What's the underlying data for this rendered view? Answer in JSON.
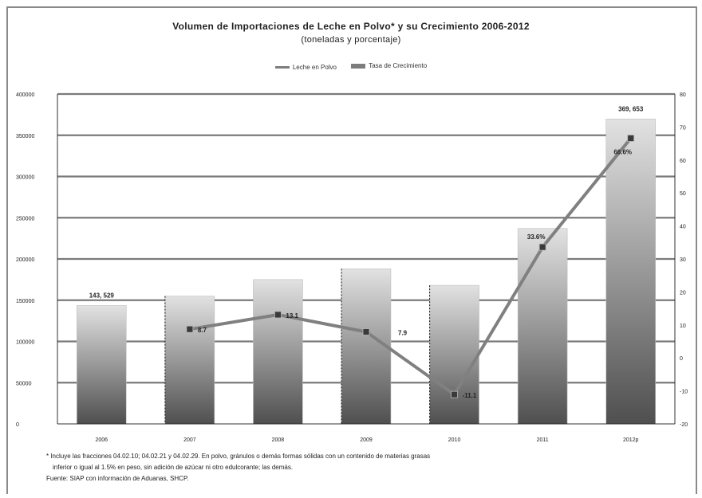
{
  "title": "Volumen de Importaciones de Leche en Polvo* y su Crecimiento 2006-2012",
  "subtitle": "(toneladas y porcentaje)",
  "legend": {
    "bar_label": "Leche en Polvo",
    "line_label": "Tasa de Crecimiento"
  },
  "chart_data": {
    "type": "bar",
    "categories": [
      "2006",
      "2007",
      "2008",
      "2009",
      "2010",
      "2011",
      "2012p"
    ],
    "series": [
      {
        "name": "Leche en Polvo",
        "type": "bar",
        "axis": "left",
        "values": [
          143529,
          155000,
          175000,
          188000,
          168000,
          237000,
          369653
        ]
      },
      {
        "name": "Tasa de Crecimiento",
        "type": "line",
        "axis": "right",
        "values": [
          null,
          8.7,
          13.1,
          7.9,
          -11.1,
          33.6,
          66.6
        ]
      }
    ],
    "data_labels": {
      "bars": [
        {
          "index": 0,
          "text": "143, 529"
        },
        {
          "index": 6,
          "text": "369, 653"
        }
      ],
      "line": [
        {
          "index": 1,
          "text": "8.7"
        },
        {
          "index": 2,
          "text": "13.1"
        },
        {
          "index": 3,
          "text": "7.9"
        },
        {
          "index": 4,
          "text": "-11.1"
        },
        {
          "index": 5,
          "text": "33.6%"
        },
        {
          "index": 6,
          "text": "66.6%"
        }
      ]
    },
    "left_axis": {
      "ticks": [
        0,
        50000,
        100000,
        150000,
        200000,
        250000,
        300000,
        350000,
        400000
      ],
      "tick_labels": [
        "0",
        "50000",
        "100000",
        "150000",
        "200000",
        "250000",
        "300000",
        "350000",
        "400000"
      ],
      "ylim": [
        0,
        400000
      ]
    },
    "right_axis": {
      "ticks": [
        -20,
        -10,
        0,
        10,
        20,
        30,
        40,
        50,
        60,
        70,
        80
      ],
      "tick_labels": [
        "-20",
        "-10",
        "0",
        "10",
        "20",
        "30",
        "40",
        "50",
        "60",
        "70",
        "80"
      ],
      "ylim": [
        -20,
        80
      ]
    },
    "grid": true,
    "legend_position": "top"
  },
  "footnotes": {
    "line1": "* Incluye las fracciones 04.02.10; 04.02.21 y 04.02.29. En polvo, gránulos o demás formas sólidas con un contenido de materias grasas",
    "line2": "inferior o igual al 1.5% en peso, sin adición de azúcar ni otro edulcorante; las demás.",
    "line3": "Fuente: SIAP con información de Aduanas, SHCP."
  },
  "colors": {
    "bar_top": "#dcdcdc",
    "bar_bottom": "#4f4f4f",
    "line": "#808080",
    "grid": "#7a7a7a",
    "marker": "#3a3a3a"
  }
}
